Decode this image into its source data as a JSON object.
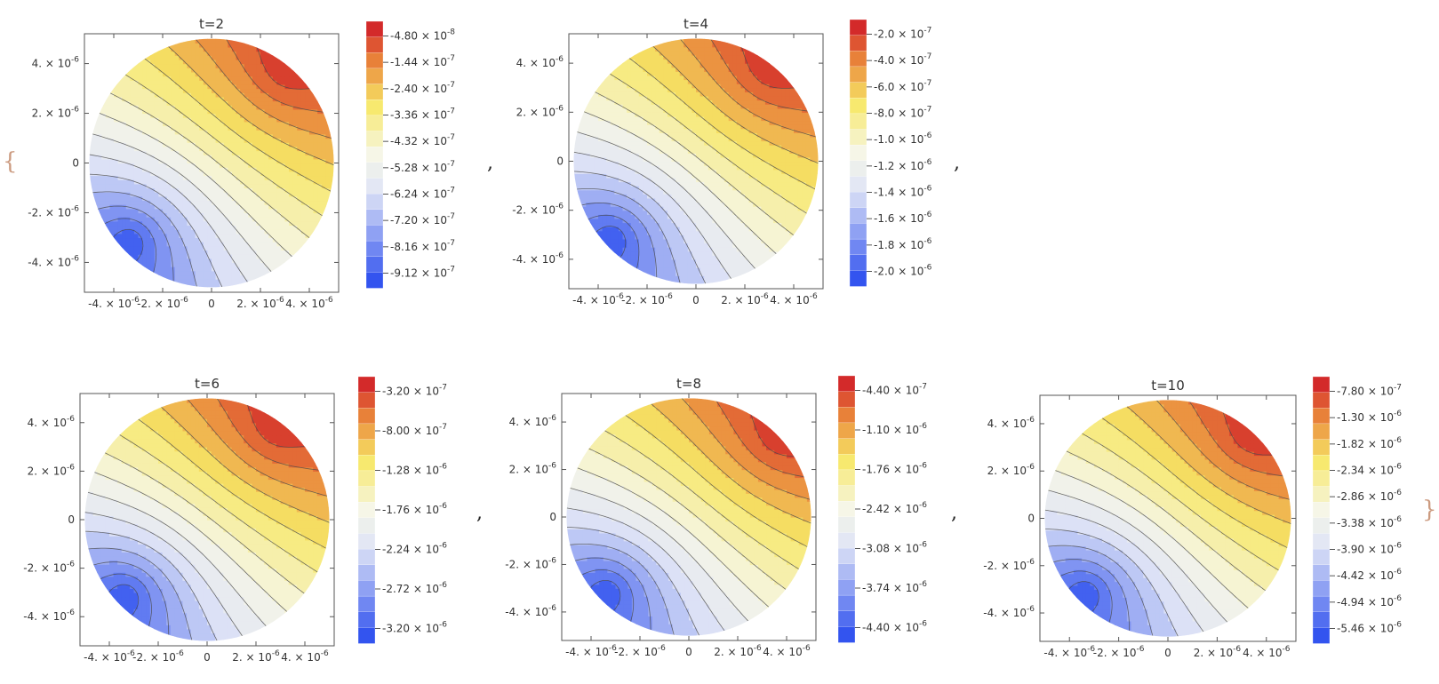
{
  "wrapper": {
    "open_brace": "{",
    "close_brace": "}",
    "separator": ","
  },
  "colors": {
    "red": "#d32a2a",
    "orange": "#e9843a",
    "yellow": "#f7e867",
    "cream": "#f6f6e7",
    "light_blue": "#dfe4f6",
    "blue": "#3354ef",
    "contour": "#4a4a4a",
    "frame": "#555555"
  },
  "chart_data": [
    {
      "type": "contour",
      "title": "t=2",
      "x_ticks": [
        "-4. × 10^-6",
        "-2. × 10^-6",
        "0",
        "2. × 10^-6",
        "4. × 10^-6"
      ],
      "y_ticks": [
        "4. × 10^-6",
        "2. × 10^-6",
        "0",
        "-2. × 10^-6",
        "-4. × 10^-6"
      ],
      "xlim": [
        -5.2e-06,
        5.2e-06
      ],
      "ylim": [
        -5.2e-06,
        5.2e-06
      ],
      "domain": "disk",
      "min_location": [
        -3.3e-06,
        -3.1e-06
      ],
      "max_location": [
        3e-06,
        3.7e-06
      ],
      "levels": 16,
      "legend_labels": [
        "-4.80 × 10^-8",
        "-1.44 × 10^-7",
        "-2.40 × 10^-7",
        "-3.36 × 10^-7",
        "-4.32 × 10^-7",
        "-5.28 × 10^-7",
        "-6.24 × 10^-7",
        "-7.20 × 10^-7",
        "-8.16 × 10^-7",
        "-9.12 × 10^-7"
      ]
    },
    {
      "type": "contour",
      "title": "t=4",
      "x_ticks": [
        "-4. × 10^-6",
        "-2. × 10^-6",
        "0",
        "2. × 10^-6",
        "4. × 10^-6"
      ],
      "y_ticks": [
        "4. × 10^-6",
        "2. × 10^-6",
        "0",
        "-2. × 10^-6",
        "-4. × 10^-6"
      ],
      "xlim": [
        -5.2e-06,
        5.2e-06
      ],
      "ylim": [
        -5.2e-06,
        5.2e-06
      ],
      "domain": "disk",
      "min_location": [
        -3.4e-06,
        -3.1e-06
      ],
      "max_location": [
        3e-06,
        3.7e-06
      ],
      "levels": 16,
      "legend_labels": [
        "-2.0 × 10^-7",
        "-4.0 × 10^-7",
        "-6.0 × 10^-7",
        "-8.0 × 10^-7",
        "-1.0 × 10^-6",
        "-1.2 × 10^-6",
        "-1.4 × 10^-6",
        "-1.6 × 10^-6",
        "-1.8 × 10^-6",
        "-2.0 × 10^-6"
      ]
    },
    {
      "type": "contour",
      "title": "t=6",
      "x_ticks": [
        "-4. × 10^-6",
        "-2. × 10^-6",
        "0",
        "2. × 10^-6",
        "4. × 10^-6"
      ],
      "y_ticks": [
        "4. × 10^-6",
        "2. × 10^-6",
        "0",
        "-2. × 10^-6",
        "-4. × 10^-6"
      ],
      "xlim": [
        -5.2e-06,
        5.2e-06
      ],
      "ylim": [
        -5.2e-06,
        5.2e-06
      ],
      "domain": "disk",
      "min_location": [
        -3.3e-06,
        -3.1e-06
      ],
      "max_location": [
        2.8e-06,
        3.7e-06
      ],
      "levels": 16,
      "legend_labels": [
        "-3.20 × 10^-7",
        "-8.00 × 10^-7",
        "-1.28 × 10^-6",
        "-1.76 × 10^-6",
        "-2.24 × 10^-6",
        "-2.72 × 10^-6",
        "-3.20 × 10^-6"
      ]
    },
    {
      "type": "contour",
      "title": "t=8",
      "x_ticks": [
        "-4. × 10^-6",
        "-2. × 10^-6",
        "0",
        "2. × 10^-6",
        "4. × 10^-6"
      ],
      "y_ticks": [
        "4. × 10^-6",
        "2. × 10^-6",
        "0",
        "-2. × 10^-6",
        "-4. × 10^-6"
      ],
      "xlim": [
        -5.2e-06,
        5.2e-06
      ],
      "ylim": [
        -5.2e-06,
        5.2e-06
      ],
      "domain": "disk",
      "min_location": [
        -3.3e-06,
        -3.1e-06
      ],
      "max_location": [
        3.7e-06,
        3.3e-06
      ],
      "levels": 16,
      "legend_labels": [
        "-4.40 × 10^-7",
        "-1.10 × 10^-6",
        "-1.76 × 10^-6",
        "-2.42 × 10^-6",
        "-3.08 × 10^-6",
        "-3.74 × 10^-6",
        "-4.40 × 10^-6"
      ]
    },
    {
      "type": "contour",
      "title": "t=10",
      "x_ticks": [
        "-4. × 10^-6",
        "-2. × 10^-6",
        "0",
        "2. × 10^-6",
        "4. × 10^-6"
      ],
      "y_ticks": [
        "4. × 10^-6",
        "2. × 10^-6",
        "0",
        "-2. × 10^-6",
        "-4. × 10^-6"
      ],
      "xlim": [
        -5.2e-06,
        5.2e-06
      ],
      "ylim": [
        -5.2e-06,
        5.2e-06
      ],
      "domain": "disk",
      "min_location": [
        -3.3e-06,
        -3.1e-06
      ],
      "max_location": [
        3.4e-06,
        3.4e-06
      ],
      "levels": 16,
      "legend_labels": [
        "-7.80 × 10^-7",
        "-1.30 × 10^-6",
        "-1.82 × 10^-6",
        "-2.34 × 10^-6",
        "-2.86 × 10^-6",
        "-3.38 × 10^-6",
        "-3.90 × 10^-6",
        "-4.42 × 10^-6",
        "-4.94 × 10^-6",
        "-5.46 × 10^-6"
      ]
    }
  ]
}
